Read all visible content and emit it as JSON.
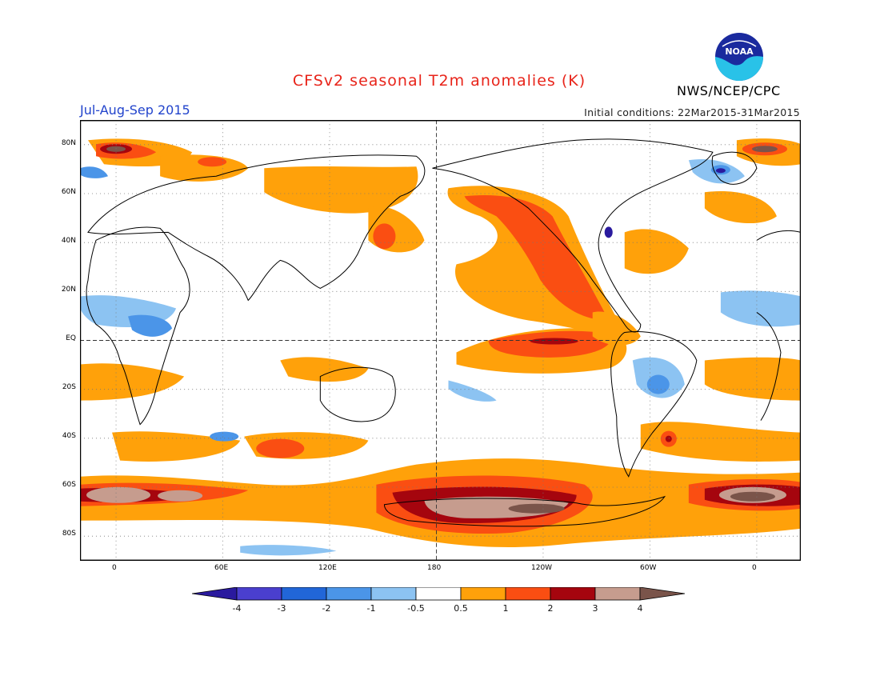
{
  "title": "CFSv2 seasonal T2m anomalies (K)",
  "period": "Jul-Aug-Sep 2015",
  "initial_conditions": "Initial conditions: 22Mar2015-31Mar2015",
  "agency": "NWS/NCEP/CPC",
  "logo_text": "NOAA",
  "units": "K",
  "lat_labels": [
    "80N",
    "60N",
    "40N",
    "20N",
    "EQ",
    "20S",
    "40S",
    "60S",
    "80S"
  ],
  "lon_labels": [
    "0",
    "60E",
    "120E",
    "180",
    "120W",
    "60W",
    "0"
  ],
  "legend": {
    "labels": [
      "-4",
      "-3",
      "-2",
      "-1",
      "-0.5",
      "0.5",
      "1",
      "2",
      "3",
      "4"
    ],
    "colors": [
      "#2a1a9e",
      "#4a3fce",
      "#2166d8",
      "#4b95e8",
      "#8cc3f2",
      "#ffffff",
      "#ffa10a",
      "#fa4e12",
      "#a5050e",
      "#c69c8e",
      "#7a544a"
    ]
  },
  "colors": {
    "title": "#e8241a",
    "period": "#2244cc",
    "positive_0.5_1": "#ffa10a",
    "positive_1_2": "#fa4e12",
    "positive_2_3": "#a5050e",
    "positive_3_4": "#c69c8e",
    "positive_gt4": "#7a544a",
    "negative_0.5_1": "#8cc3f2",
    "negative_1_2": "#4b95e8",
    "negative_lt4": "#2a1a9e"
  }
}
